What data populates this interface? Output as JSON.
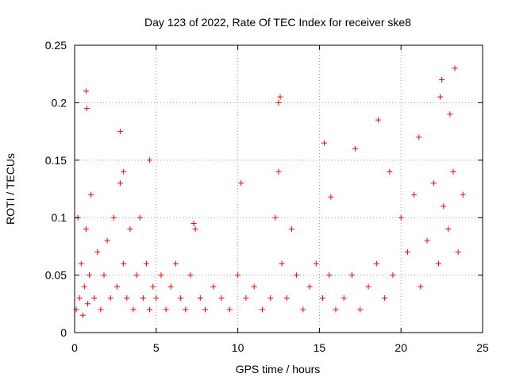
{
  "chart_data": {
    "type": "scatter",
    "title": "Day 123 of 2022, Rate Of TEC Index for receiver ske8",
    "xlabel": "GPS time / hours",
    "ylabel": "ROTI / TECUs",
    "xlim": [
      0,
      25
    ],
    "ylim": [
      0,
      0.25
    ],
    "x_ticks": [
      0,
      5,
      10,
      15,
      20,
      25
    ],
    "x_tick_labels": [
      "0",
      "5",
      "10",
      "15",
      "20",
      "25"
    ],
    "y_ticks": [
      0,
      0.05,
      0.1,
      0.15,
      0.2,
      0.25
    ],
    "y_tick_labels": [
      "0",
      "0.05",
      "0.1",
      "0.15",
      "0.2",
      "0.25"
    ],
    "grid": true,
    "marker": "+",
    "color": "#ff0000",
    "series": [
      {
        "name": "ROTI",
        "x": [
          0.1,
          0.2,
          0.3,
          0.4,
          0.5,
          0.6,
          0.7,
          0.8,
          0.9,
          1.0,
          1.2,
          1.4,
          1.6,
          1.8,
          2.0,
          2.2,
          2.4,
          2.6,
          2.8,
          3.0,
          3.2,
          3.4,
          3.6,
          3.8,
          4.0,
          4.2,
          4.4,
          4.6,
          4.8,
          5.0,
          5.3,
          5.6,
          5.9,
          6.2,
          6.5,
          6.8,
          7.1,
          7.4,
          7.7,
          8.0,
          8.5,
          9.0,
          9.5,
          10.0,
          10.5,
          11.0,
          11.5,
          12.0,
          12.3,
          12.5,
          12.7,
          13.0,
          13.3,
          13.6,
          14.0,
          14.4,
          14.8,
          15.2,
          15.6,
          16.0,
          16.5,
          17.0,
          17.5,
          18.0,
          18.5,
          19.0,
          19.5,
          20.0,
          20.4,
          20.8,
          21.2,
          21.6,
          22.0,
          22.3,
          22.6,
          22.9,
          23.2,
          23.5,
          23.8,
          0.7,
          0.75,
          2.8,
          3.0,
          4.6,
          7.3,
          10.2,
          12.5,
          12.6,
          15.3,
          15.7,
          17.2,
          18.6,
          19.3,
          21.1,
          22.4,
          22.5,
          23.0,
          23.3
        ],
        "y": [
          0.02,
          0.1,
          0.03,
          0.06,
          0.015,
          0.04,
          0.09,
          0.025,
          0.05,
          0.12,
          0.03,
          0.07,
          0.02,
          0.05,
          0.08,
          0.03,
          0.1,
          0.04,
          0.13,
          0.06,
          0.03,
          0.09,
          0.02,
          0.05,
          0.1,
          0.03,
          0.06,
          0.02,
          0.04,
          0.03,
          0.05,
          0.02,
          0.04,
          0.06,
          0.03,
          0.02,
          0.05,
          0.09,
          0.03,
          0.02,
          0.04,
          0.03,
          0.02,
          0.05,
          0.03,
          0.04,
          0.02,
          0.03,
          0.1,
          0.14,
          0.06,
          0.03,
          0.09,
          0.05,
          0.02,
          0.04,
          0.06,
          0.03,
          0.05,
          0.02,
          0.03,
          0.05,
          0.02,
          0.04,
          0.06,
          0.03,
          0.05,
          0.1,
          0.07,
          0.12,
          0.04,
          0.08,
          0.13,
          0.06,
          0.11,
          0.09,
          0.14,
          0.07,
          0.12,
          0.21,
          0.195,
          0.175,
          0.14,
          0.15,
          0.095,
          0.13,
          0.2,
          0.205,
          0.165,
          0.118,
          0.16,
          0.185,
          0.14,
          0.17,
          0.205,
          0.22,
          0.19,
          0.23
        ]
      }
    ]
  }
}
